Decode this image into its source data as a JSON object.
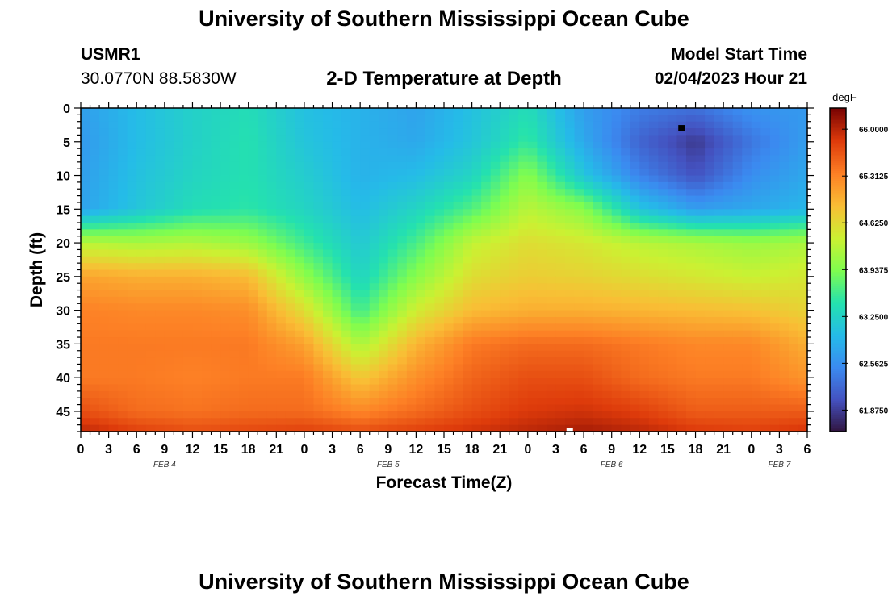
{
  "page": {
    "title": "University of Southern Mississippi Ocean Cube",
    "footer_title": "University of Southern Mississippi Ocean Cube",
    "station": "USMR1",
    "coordinates": "30.0770N  88.5830W",
    "plot_title": "2-D Temperature at Depth",
    "model_start_label": "Model Start Time",
    "model_start_value": "02/04/2023 Hour 21"
  },
  "chart_data": {
    "type": "heatmap",
    "title": "2-D Temperature at Depth",
    "xlabel": "Forecast Time(Z)",
    "ylabel": "Depth (ft)",
    "colorbar_units": "degF",
    "x_hours": [
      0,
      6,
      12,
      18,
      24,
      30,
      36,
      42,
      48,
      54,
      60,
      66,
      72,
      78
    ],
    "x_range_hours": [
      0,
      78
    ],
    "x_tick_labels": [
      "0",
      "3",
      "6",
      "9",
      "12",
      "15",
      "18",
      "21",
      "0",
      "3",
      "6",
      "9",
      "12",
      "15",
      "18",
      "21",
      "0",
      "3",
      "6",
      "9",
      "12",
      "15",
      "18",
      "21",
      "0",
      "3",
      "6"
    ],
    "date_labels": [
      {
        "label": "FEB 4",
        "hour": 9
      },
      {
        "label": "FEB 5",
        "hour": 33
      },
      {
        "label": "FEB 6",
        "hour": 57
      },
      {
        "label": "FEB 7",
        "hour": 75
      }
    ],
    "y_depth_ft": [
      0,
      5,
      10,
      15,
      20,
      25,
      30,
      35,
      40,
      45,
      48
    ],
    "y_range_ft": [
      0,
      48
    ],
    "y_tick_labels": [
      "0",
      "5",
      "10",
      "15",
      "20",
      "25",
      "30",
      "35",
      "40",
      "45"
    ],
    "values_degF": [
      [
        62.7,
        63.0,
        63.25,
        63.4,
        63.05,
        62.9,
        62.75,
        63.05,
        63.4,
        62.7,
        62.4,
        62.3,
        62.6,
        62.65
      ],
      [
        62.65,
        63.0,
        63.25,
        63.45,
        63.1,
        62.9,
        62.8,
        63.1,
        63.55,
        62.8,
        62.2,
        61.85,
        62.35,
        62.7
      ],
      [
        62.7,
        63.05,
        63.3,
        63.45,
        63.2,
        62.9,
        63.0,
        63.3,
        64.0,
        63.1,
        62.45,
        62.05,
        62.55,
        62.8
      ],
      [
        62.75,
        63.1,
        63.4,
        63.5,
        63.3,
        63.0,
        63.3,
        63.7,
        64.3,
        64.0,
        63.1,
        62.7,
        62.8,
        62.95
      ],
      [
        64.3,
        64.2,
        64.25,
        64.1,
        63.6,
        63.15,
        63.65,
        64.35,
        64.6,
        64.5,
        64.3,
        64.2,
        64.1,
        64.2
      ],
      [
        65.1,
        65.0,
        65.0,
        64.9,
        64.05,
        63.3,
        64.0,
        64.6,
        64.75,
        64.7,
        64.6,
        64.5,
        64.4,
        64.5
      ],
      [
        65.35,
        65.3,
        65.3,
        65.25,
        64.6,
        63.6,
        64.45,
        64.9,
        65.0,
        65.0,
        64.95,
        64.9,
        64.85,
        64.7
      ],
      [
        65.4,
        65.4,
        65.4,
        65.4,
        65.1,
        64.2,
        64.95,
        65.4,
        65.5,
        65.5,
        65.4,
        65.3,
        65.3,
        65.0
      ],
      [
        65.4,
        65.4,
        65.35,
        65.4,
        65.4,
        64.8,
        65.25,
        65.55,
        65.7,
        65.7,
        65.5,
        65.4,
        65.4,
        65.2
      ],
      [
        65.7,
        65.5,
        65.45,
        65.5,
        65.5,
        65.3,
        65.5,
        65.7,
        65.85,
        65.9,
        65.8,
        65.6,
        65.6,
        65.6
      ],
      [
        66.0,
        65.8,
        65.7,
        65.75,
        65.8,
        65.7,
        65.8,
        65.9,
        66.0,
        66.1,
        66.0,
        65.85,
        65.8,
        65.9
      ]
    ],
    "colorbar_range": [
      61.56,
      66.31
    ],
    "colorbar_ticks": [
      "66.0000",
      "65.3125",
      "64.6250",
      "63.9375",
      "63.2500",
      "62.5625",
      "61.8750"
    ],
    "colorbar_tick_values": [
      66.0,
      65.3125,
      64.625,
      63.9375,
      63.25,
      62.5625,
      61.875
    ],
    "markers": [
      {
        "kind": "minimum",
        "hour": 64.5,
        "depth_ft": 3,
        "color": "#000000"
      },
      {
        "kind": "maximum",
        "hour": 52.5,
        "depth_ft": 48,
        "color": "#ffffff"
      }
    ],
    "colormap": "turbo"
  }
}
